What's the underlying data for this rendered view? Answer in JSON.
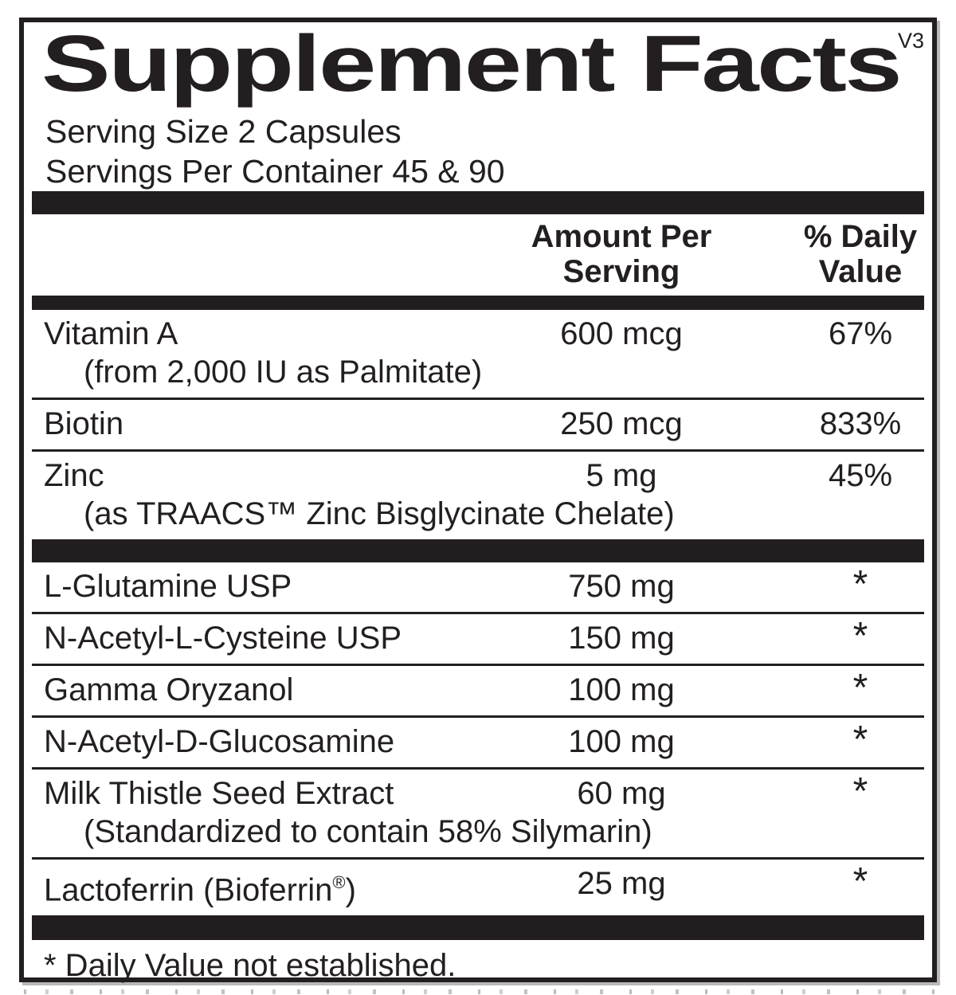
{
  "panel": {
    "title": "Supplement Facts",
    "version_tag": "V3",
    "serving_lines": [
      "Serving Size 2 Capsules",
      "Servings Per Container 45 & 90"
    ],
    "header": {
      "amount": [
        "Amount Per",
        "Serving"
      ],
      "daily_value": [
        "% Daily",
        "Value"
      ]
    },
    "sections": [
      {
        "rows": [
          {
            "name": "Vitamin A",
            "sub": "(from 2,000 IU as Palmitate)",
            "amount": "600 mcg",
            "dv": "67%"
          },
          {
            "name": "Biotin",
            "amount": "250 mcg",
            "dv": "833%"
          },
          {
            "name": "Zinc",
            "sub": "(as TRAACS™ Zinc Bisglycinate Chelate)",
            "amount": "5 mg",
            "dv": "45%"
          }
        ]
      },
      {
        "rows": [
          {
            "name": "L-Glutamine USP",
            "amount": "750 mg",
            "dv": "*"
          },
          {
            "name": "N-Acetyl-L-Cysteine USP",
            "amount": "150 mg",
            "dv": "*"
          },
          {
            "name": "Gamma Oryzanol",
            "amount": "100 mg",
            "dv": "*"
          },
          {
            "name": "N-Acetyl-D-Glucosamine",
            "amount": "100 mg",
            "dv": "*"
          },
          {
            "name": "Milk Thistle Seed Extract",
            "sub": "(Standardized to contain 58% Silymarin)",
            "amount": "60 mg",
            "dv": "*"
          },
          {
            "name": "Lactoferrin (Bioferrin®)",
            "amount": "25 mg",
            "dv": "*"
          }
        ]
      }
    ],
    "footnote": "* Daily Value not established."
  },
  "colors": {
    "ink": "#231f20",
    "bar": "#221e1f",
    "shadow": "#b9b9b9"
  }
}
